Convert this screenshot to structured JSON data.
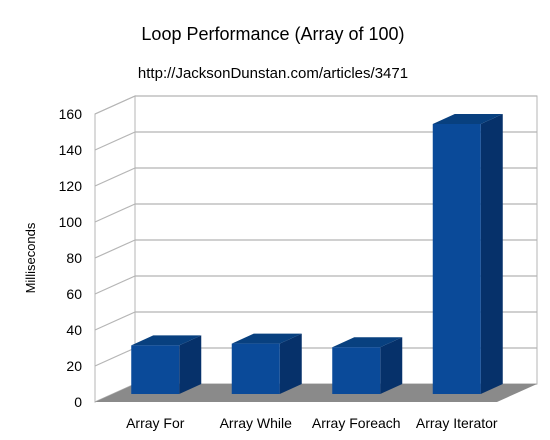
{
  "chart_data": {
    "type": "bar",
    "title": "Loop Performance (Array of 100)",
    "subtitle": "http://JacksonDunstan.com/articles/3471",
    "xlabel": "",
    "ylabel": "Milliseconds",
    "categories": [
      "Array For",
      "Array While",
      "Array Foreach",
      "Array Iterator"
    ],
    "values": [
      27,
      28,
      26,
      150
    ],
    "ylim": [
      0,
      160
    ],
    "yticks": [
      "0",
      "20",
      "40",
      "60",
      "80",
      "100",
      "120",
      "140",
      "160"
    ],
    "grid": true,
    "legend": "none",
    "style": "3d",
    "colors": {
      "bar_front": "#0a4a99",
      "bar_side": "#06316a",
      "bar_top": "#08407f",
      "floor": "#8a8a8a",
      "grid": "#b5b5b5"
    }
  }
}
